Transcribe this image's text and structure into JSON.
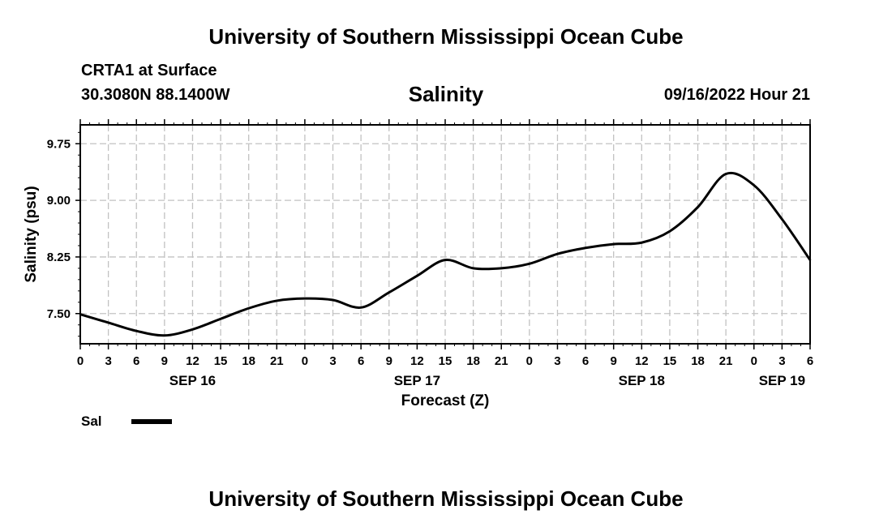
{
  "header": {
    "title": "University of Southern Mississippi Ocean Cube",
    "station": "CRTA1 at Surface",
    "coordinates": "30.3080N  88.1400W",
    "timestamp": "09/16/2022 Hour 21"
  },
  "footer": {
    "title": "University of Southern Mississippi Ocean Cube"
  },
  "legend": {
    "label": "Sal"
  },
  "chart_data": {
    "type": "line",
    "title": "Salinity",
    "xlabel": "Forecast (Z)",
    "ylabel": "Salinity (psu)",
    "x_unit": "hours since Sep 16 00Z",
    "xlim": [
      0,
      78
    ],
    "ylim": [
      7.1,
      10.0
    ],
    "yticks": [
      7.5,
      8.25,
      9.0,
      9.75
    ],
    "ytick_labels": [
      "7.50",
      "8.25",
      "9.00",
      "9.75"
    ],
    "xticks": [
      0,
      3,
      6,
      9,
      12,
      15,
      18,
      21,
      24,
      27,
      30,
      33,
      36,
      39,
      42,
      45,
      48,
      51,
      54,
      57,
      60,
      63,
      66,
      69,
      72,
      75,
      78
    ],
    "xtick_labels": [
      "0",
      "3",
      "6",
      "9",
      "12",
      "15",
      "18",
      "21",
      "0",
      "3",
      "6",
      "9",
      "12",
      "15",
      "18",
      "21",
      "0",
      "3",
      "6",
      "9",
      "12",
      "15",
      "18",
      "21",
      "0",
      "3",
      "6"
    ],
    "date_labels": [
      {
        "x": 12,
        "label": "SEP 16"
      },
      {
        "x": 36,
        "label": "SEP 17"
      },
      {
        "x": 60,
        "label": "SEP 18"
      },
      {
        "x": 75,
        "label": "SEP 19"
      }
    ],
    "grid": true,
    "series": [
      {
        "name": "Sal",
        "color": "#000000",
        "x": [
          0,
          3,
          6,
          9,
          12,
          15,
          18,
          21,
          24,
          27,
          30,
          33,
          36,
          39,
          42,
          45,
          48,
          51,
          54,
          57,
          60,
          63,
          66,
          69,
          72,
          75,
          78
        ],
        "y": [
          7.49,
          7.38,
          7.27,
          7.21,
          7.29,
          7.43,
          7.57,
          7.67,
          7.7,
          7.68,
          7.58,
          7.78,
          8.0,
          8.21,
          8.1,
          8.1,
          8.16,
          8.29,
          8.37,
          8.42,
          8.44,
          8.59,
          8.91,
          9.35,
          9.2,
          8.75,
          8.21
        ]
      }
    ]
  }
}
